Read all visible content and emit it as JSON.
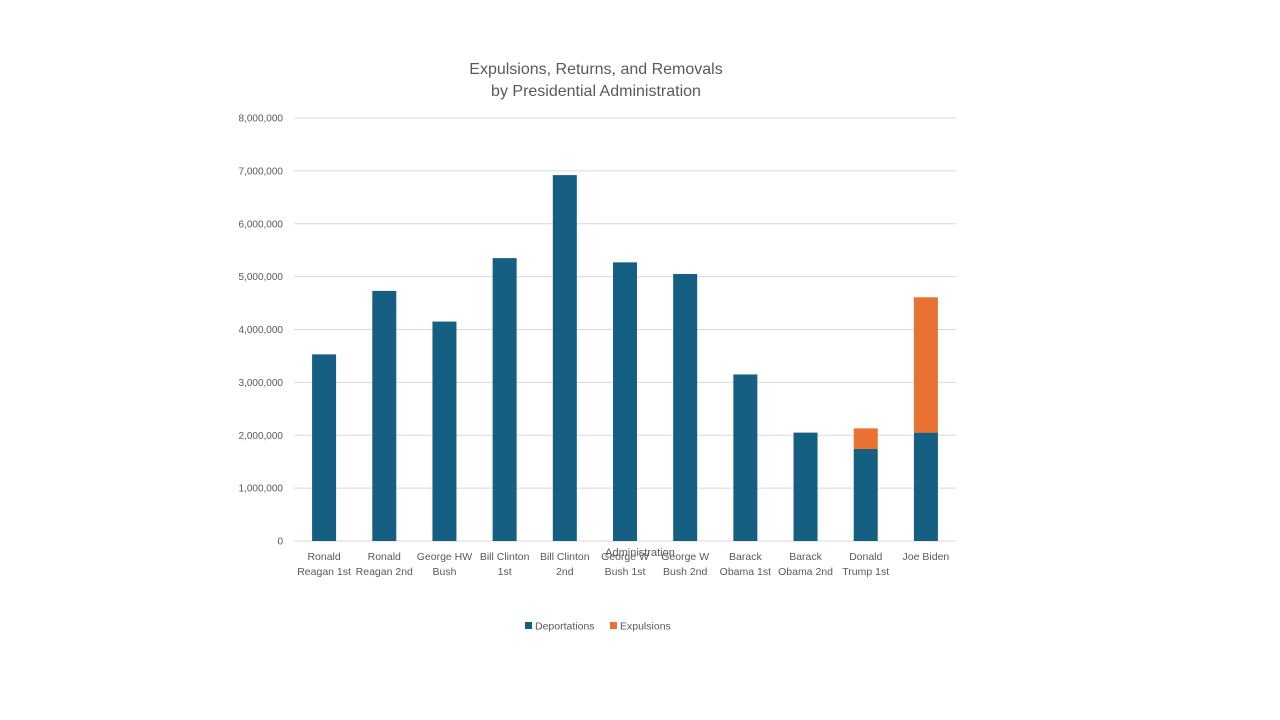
{
  "chart_data": {
    "type": "bar",
    "stacked": true,
    "title_lines": [
      "Expulsions, Returns, and Removals",
      "by Presidential Administration"
    ],
    "xlabel": "Administration",
    "ylabel": "",
    "ylim": [
      0,
      8000000
    ],
    "yticks": [
      0,
      1000000,
      2000000,
      3000000,
      4000000,
      5000000,
      6000000,
      7000000,
      8000000
    ],
    "ytick_labels": [
      "0",
      "1,000,000",
      "2,000,000",
      "3,000,000",
      "4,000,000",
      "5,000,000",
      "6,000,000",
      "7,000,000",
      "8,000,000"
    ],
    "grid": true,
    "legend_position": "bottom",
    "categories": [
      [
        "Ronald",
        "Reagan 1st"
      ],
      [
        "Ronald",
        "Reagan 2nd"
      ],
      [
        "George HW",
        "Bush"
      ],
      [
        "Bill Clinton",
        "1st"
      ],
      [
        "Bill Clinton",
        "2nd"
      ],
      [
        "George W",
        "Bush 1st"
      ],
      [
        "George W",
        "Bush 2nd"
      ],
      [
        "Barack",
        "Obama 1st"
      ],
      [
        "Barack",
        "Obama 2nd"
      ],
      [
        "Donald",
        "Trump 1st"
      ],
      [
        "Joe Biden"
      ]
    ],
    "series": [
      {
        "name": "Deportations",
        "color": "#156082",
        "values": [
          3530000,
          4730000,
          4150000,
          5350000,
          6920000,
          5270000,
          5050000,
          3150000,
          2050000,
          1740000,
          2050000
        ]
      },
      {
        "name": "Expulsions",
        "color": "#e97132",
        "values": [
          0,
          0,
          0,
          0,
          0,
          0,
          0,
          0,
          0,
          390000,
          2560000
        ]
      }
    ]
  }
}
